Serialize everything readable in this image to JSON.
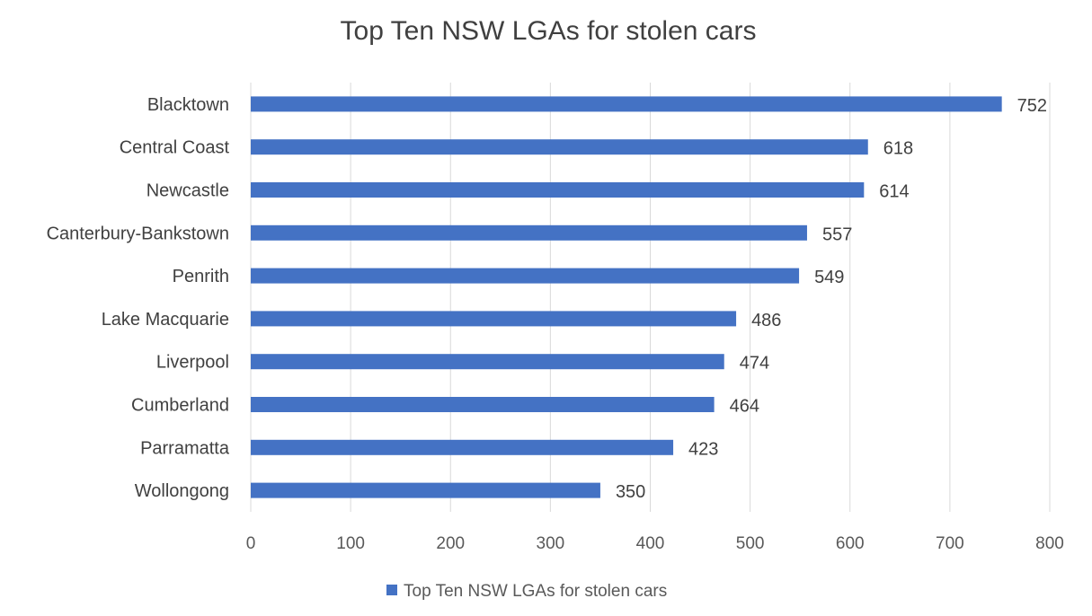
{
  "chart_data": {
    "type": "bar",
    "orientation": "horizontal",
    "title": "Top Ten NSW LGAs for stolen cars",
    "xlabel": "",
    "ylabel": "",
    "categories": [
      "Blacktown",
      "Central Coast",
      "Newcastle",
      "Canterbury-Bankstown",
      "Penrith",
      "Lake Macquarie",
      "Liverpool",
      "Cumberland",
      "Parramatta",
      "Wollongong"
    ],
    "series": [
      {
        "name": "Top Ten NSW LGAs for stolen cars",
        "values": [
          752,
          618,
          614,
          557,
          549,
          486,
          474,
          464,
          423,
          350
        ],
        "color": "#4472c4"
      }
    ],
    "xlim": [
      0,
      800
    ],
    "ticks": [
      0,
      100,
      200,
      300,
      400,
      500,
      600,
      700,
      800
    ],
    "grid": true,
    "legend_position": "bottom",
    "data_labels": true
  }
}
